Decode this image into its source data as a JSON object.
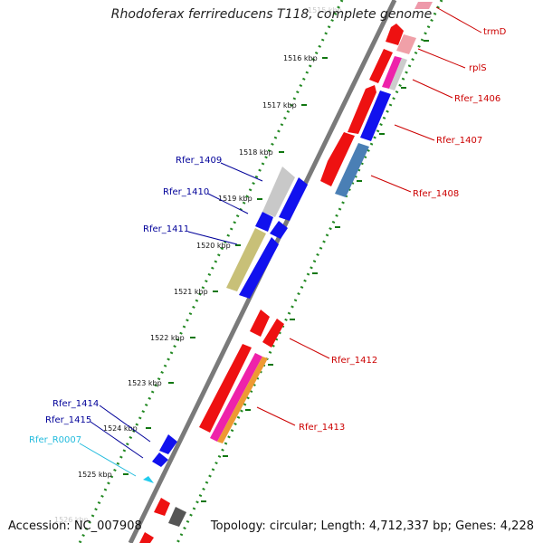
{
  "title": "Rhodoferax ferrireducens T118, complete genome",
  "footer": {
    "accession": "Accession: NC_007908",
    "summary": "Topology: circular; Length: 4,712,337 bp; Genes: 4,228"
  },
  "ruler": [
    {
      "label": "1515 kbp",
      "faded": true
    },
    {
      "label": "1516 kbp"
    },
    {
      "label": "1517 kbp"
    },
    {
      "label": "1518 kbp"
    },
    {
      "label": "1519 kbp"
    },
    {
      "label": "1520 kbp"
    },
    {
      "label": "1521 kbp"
    },
    {
      "label": "1522 kbp"
    },
    {
      "label": "1523 kbp"
    },
    {
      "label": "1524 kbp"
    },
    {
      "label": "1525 kbp"
    },
    {
      "label": "1526 kbp",
      "faded": true
    }
  ],
  "gene_labels": {
    "trmD": "trmD",
    "rplS": "rplS",
    "rfer_1406": "Rfer_1406",
    "rfer_1407": "Rfer_1407",
    "rfer_1408": "Rfer_1408",
    "rfer_1409": "Rfer_1409",
    "rfer_1410": "Rfer_1410",
    "rfer_1411": "Rfer_1411",
    "rfer_1412": "Rfer_1412",
    "rfer_1413": "Rfer_1413",
    "rfer_1414": "Rfer_1414",
    "rfer_1415": "Rfer_1415",
    "rfer_r0007": "Rfer_R0007"
  },
  "colors": {
    "red": "#ee1111",
    "blue": "#1111ee",
    "steelblue": "#4a7fb5",
    "gray": "#c8c8c8",
    "olive": "#c8c078",
    "pink": "#ee99aa",
    "magenta": "#ee22aa",
    "orange": "#ee9933",
    "cyan": "#22ccee",
    "darkgray": "#555555",
    "backbone": "#888888",
    "dots": "#228822",
    "label_red": "#cc0000",
    "label_blue": "#000099",
    "label_cyan": "#22bbdd"
  }
}
